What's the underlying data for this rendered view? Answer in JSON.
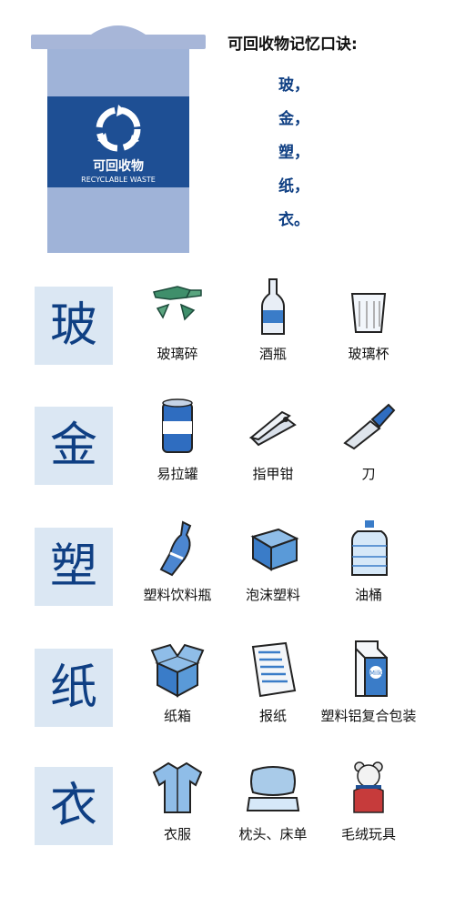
{
  "bin": {
    "label_cn": "可回收物",
    "label_en": "RECYCLABLE WASTE",
    "icon": "recycle-icon",
    "colors": {
      "body": "#9fb3d8",
      "lid": "#a7b6d8",
      "band": "#1e4f94"
    }
  },
  "mnemonic": {
    "title": "可回收物记忆口诀:",
    "lines": [
      "玻，",
      "金，",
      "塑，",
      "纸，",
      "衣。"
    ]
  },
  "categories": [
    {
      "char": "玻",
      "items": [
        {
          "label": "玻璃碎",
          "icon": "broken-glass-icon"
        },
        {
          "label": "酒瓶",
          "icon": "beer-bottle-icon"
        },
        {
          "label": "玻璃杯",
          "icon": "glass-cup-icon"
        }
      ]
    },
    {
      "char": "金",
      "items": [
        {
          "label": "易拉罐",
          "icon": "can-icon"
        },
        {
          "label": "指甲钳",
          "icon": "nail-clipper-icon"
        },
        {
          "label": "刀",
          "icon": "knife-icon"
        }
      ]
    },
    {
      "char": "塑",
      "items": [
        {
          "label": "塑料饮料瓶",
          "icon": "plastic-bottle-icon"
        },
        {
          "label": "泡沫塑料",
          "icon": "foam-box-icon"
        },
        {
          "label": "油桶",
          "icon": "oil-jug-icon"
        }
      ]
    },
    {
      "char": "纸",
      "items": [
        {
          "label": "纸箱",
          "icon": "cardboard-box-icon"
        },
        {
          "label": "报纸",
          "icon": "newspaper-icon"
        },
        {
          "label": "塑料铝复合包装",
          "icon": "milk-carton-icon",
          "print": "Milk"
        }
      ]
    },
    {
      "char": "衣",
      "items": [
        {
          "label": "衣服",
          "icon": "shirt-icon"
        },
        {
          "label": "枕头、床单",
          "icon": "pillow-icon"
        },
        {
          "label": "毛绒玩具",
          "icon": "teddy-bear-icon"
        }
      ]
    }
  ],
  "colors": {
    "accent": "#0f3f83",
    "tile_bg": "#dbe7f3",
    "icon_blue": "#3a7cc8",
    "icon_light": "#8fbde8"
  }
}
